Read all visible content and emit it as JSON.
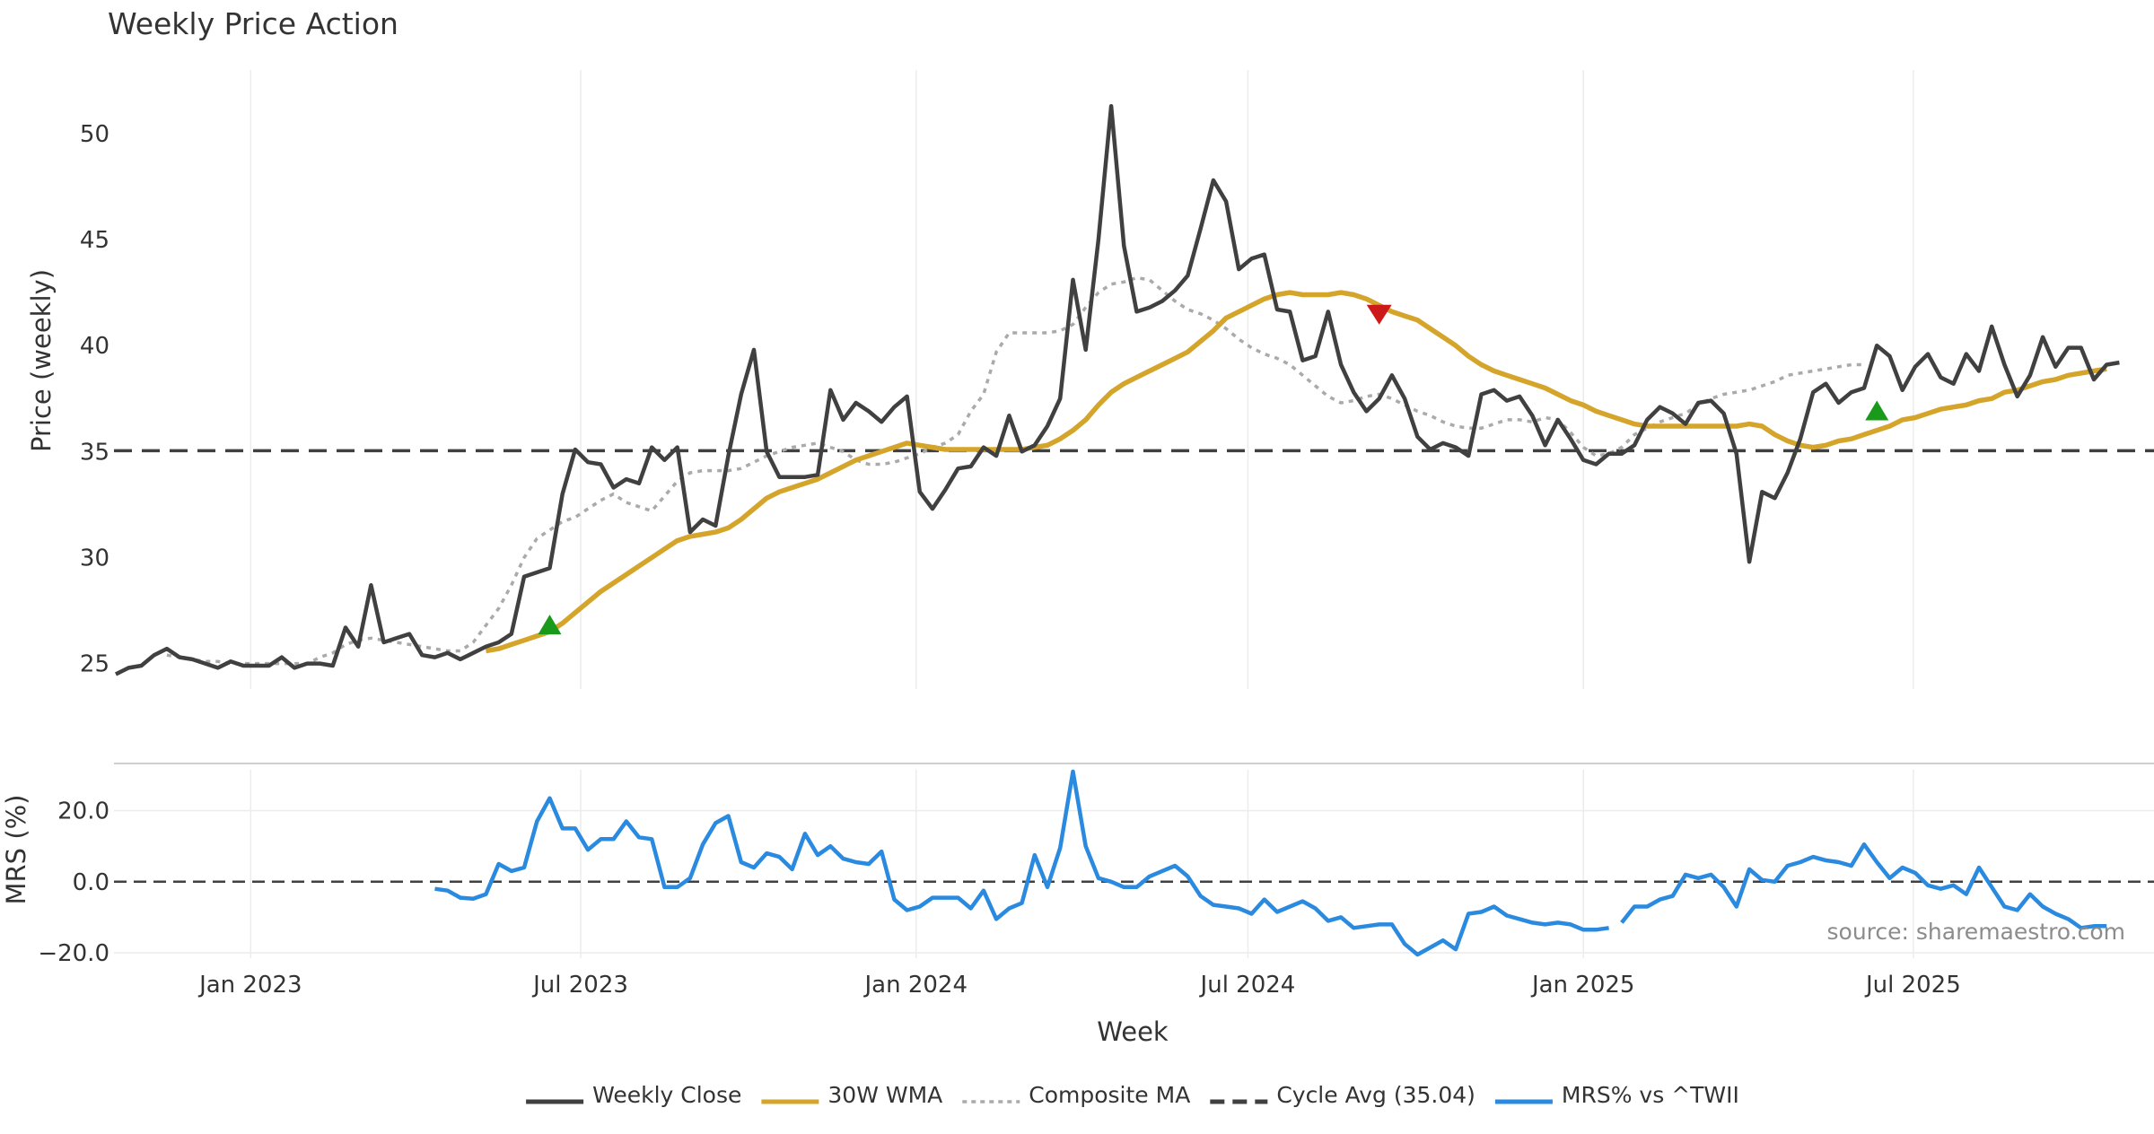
{
  "chart_data": [
    {
      "type": "line",
      "title": "Weekly Price Action",
      "ylabel": "Price (weekly)",
      "xlabel": "",
      "ylim": [
        23.8,
        53.0
      ],
      "yticks": [
        25,
        30,
        35,
        40,
        45,
        50
      ],
      "ytick_labels": [
        "25",
        "30",
        "35",
        "40",
        "45",
        "50"
      ],
      "xlim": [
        "2022-10-18",
        "2025-11-10"
      ],
      "xgrid": [
        "2023-01-01",
        "2023-07-01",
        "2024-01-01",
        "2024-07-01",
        "2025-01-01",
        "2025-07-01"
      ],
      "cycle_avg": 35.04,
      "x_weeks": "weekly points, 2022-10-19 to 2025-11-10",
      "series": [
        {
          "name": "Weekly Close",
          "start": "2022-10-19",
          "values": [
            24.5,
            24.8,
            24.9,
            25.4,
            25.7,
            25.3,
            25.2,
            25.0,
            24.8,
            25.1,
            24.9,
            24.9,
            24.9,
            25.3,
            24.8,
            25.0,
            25.0,
            24.9,
            26.7,
            25.8,
            28.7,
            26.0,
            26.2,
            26.4,
            25.4,
            25.3,
            25.5,
            25.2,
            25.5,
            25.8,
            26.0,
            26.4,
            29.1,
            29.3,
            29.5,
            33.0,
            35.1,
            34.5,
            34.4,
            33.3,
            33.7,
            33.5,
            35.2,
            34.6,
            35.2,
            31.2,
            31.8,
            31.5,
            34.8,
            37.7,
            39.8,
            35.0,
            33.8,
            33.8,
            33.8,
            33.9,
            37.9,
            36.5,
            37.3,
            36.9,
            36.4,
            37.1,
            37.6,
            33.1,
            32.3,
            33.2,
            34.2,
            34.3,
            35.2,
            34.8,
            36.7,
            35.0,
            35.3,
            36.2,
            37.5,
            43.1,
            39.8,
            45.0,
            51.3,
            44.7,
            41.6,
            41.8,
            42.1,
            42.6,
            43.3,
            45.5,
            47.8,
            46.8,
            43.6,
            44.1,
            44.3,
            41.7,
            41.6,
            39.3,
            39.5,
            41.6,
            39.1,
            37.8,
            36.9,
            37.5,
            38.6,
            37.5,
            35.7,
            35.1,
            35.4,
            35.2,
            34.8,
            37.7,
            37.9,
            37.4,
            37.6,
            36.7,
            35.3,
            36.5,
            35.6,
            34.6,
            34.4,
            34.9,
            34.9,
            35.3,
            36.5,
            37.1,
            36.8,
            36.3,
            37.3,
            37.4,
            36.8,
            34.9,
            29.8,
            33.1,
            32.8,
            34.0,
            35.6,
            37.8,
            38.2,
            37.3,
            37.8,
            38.0,
            40.0,
            39.5,
            37.9,
            39.0,
            39.6,
            38.5,
            38.2,
            39.6,
            38.8,
            40.9,
            39.1,
            37.6,
            38.6,
            40.4,
            39.0,
            39.9,
            39.9,
            38.4,
            39.1,
            39.2
          ]
        },
        {
          "name": "30W WMA",
          "start": "2023-05-10",
          "values": [
            25.6,
            25.7,
            25.9,
            26.1,
            26.3,
            26.5,
            26.9,
            27.4,
            27.9,
            28.4,
            28.8,
            29.2,
            29.6,
            30.0,
            30.4,
            30.8,
            31.0,
            31.1,
            31.2,
            31.4,
            31.8,
            32.3,
            32.8,
            33.1,
            33.3,
            33.5,
            33.7,
            34.0,
            34.3,
            34.6,
            34.8,
            35.0,
            35.2,
            35.4,
            35.3,
            35.2,
            35.1,
            35.1,
            35.1,
            35.1,
            35.1,
            35.1,
            35.1,
            35.2,
            35.3,
            35.6,
            36.0,
            36.5,
            37.2,
            37.8,
            38.2,
            38.5,
            38.8,
            39.1,
            39.4,
            39.7,
            40.2,
            40.7,
            41.3,
            41.6,
            41.9,
            42.2,
            42.4,
            42.5,
            42.4,
            42.4,
            42.4,
            42.5,
            42.4,
            42.2,
            41.9,
            41.6,
            41.4,
            41.2,
            40.8,
            40.4,
            40.0,
            39.5,
            39.1,
            38.8,
            38.6,
            38.4,
            38.2,
            38.0,
            37.7,
            37.4,
            37.2,
            36.9,
            36.7,
            36.5,
            36.3,
            36.2,
            36.2,
            36.2,
            36.2,
            36.2,
            36.2,
            36.2,
            36.2,
            36.3,
            36.2,
            35.8,
            35.5,
            35.3,
            35.2,
            35.3,
            35.5,
            35.6,
            35.8,
            36.0,
            36.2,
            36.5,
            36.6,
            36.8,
            37.0,
            37.1,
            37.2,
            37.4,
            37.5,
            37.8,
            37.9,
            38.1,
            38.3,
            38.4,
            38.6,
            38.7,
            38.8,
            38.9
          ]
        },
        {
          "name": "Composite MA",
          "start": "2022-11-16",
          "values": [
            25.4,
            25.3,
            25.2,
            25.1,
            25.1,
            25.0,
            25.0,
            25.0,
            25.0,
            25.0,
            25.0,
            25.0,
            25.3,
            25.5,
            25.9,
            26.1,
            26.2,
            26.1,
            26.0,
            25.9,
            25.8,
            25.7,
            25.6,
            25.6,
            26.0,
            26.8,
            27.6,
            28.7,
            30.0,
            30.9,
            31.3,
            31.7,
            31.9,
            32.3,
            32.7,
            33.0,
            32.6,
            32.4,
            32.2,
            32.9,
            33.6,
            34.0,
            34.1,
            34.1,
            34.1,
            34.2,
            34.5,
            34.8,
            35.0,
            35.2,
            35.3,
            35.4,
            35.2,
            35.0,
            34.6,
            34.4,
            34.4,
            34.5,
            34.7,
            34.9,
            35.2,
            35.4,
            35.8,
            36.9,
            37.7,
            39.7,
            40.6,
            40.6,
            40.6,
            40.6,
            40.7,
            41.0,
            41.8,
            42.5,
            42.9,
            43.0,
            43.2,
            43.1,
            42.6,
            42.1,
            41.7,
            41.5,
            41.2,
            40.8,
            40.3,
            39.9,
            39.6,
            39.4,
            39.1,
            38.6,
            38.1,
            37.6,
            37.3,
            37.4,
            37.6,
            37.7,
            37.5,
            37.2,
            36.9,
            36.7,
            36.4,
            36.2,
            36.1,
            36.1,
            36.3,
            36.5,
            36.5,
            36.4,
            36.6,
            36.5,
            35.9,
            35.2,
            34.8,
            34.9,
            35.2,
            35.8,
            36.1,
            36.4,
            36.6,
            36.8,
            37.2,
            37.5,
            37.7,
            37.8,
            37.9,
            38.1,
            38.3,
            38.6,
            38.7,
            38.8,
            38.9,
            39.0,
            39.1,
            39.1
          ]
        }
      ],
      "markers": [
        {
          "name": "Buy signal",
          "kind": "triangle-up",
          "date": "2023-06-14",
          "value": 26.8
        },
        {
          "name": "Sell signal",
          "kind": "triangle-down",
          "date": "2024-09-11",
          "value": 41.5
        },
        {
          "name": "Buy signal",
          "kind": "triangle-up",
          "date": "2025-06-11",
          "value": 36.9
        }
      ]
    },
    {
      "type": "line",
      "title": "",
      "ylabel": "MRS (%)",
      "xlabel": "Week",
      "ylim": [
        -21.5,
        31.5
      ],
      "yticks": [
        -20,
        0,
        20
      ],
      "ytick_labels": [
        "−20.0",
        "0.0",
        "20.0"
      ],
      "zero_line": 0,
      "series": [
        {
          "name": "MRS% vs ^TWII",
          "segments": [
            {
              "start": "2023-04-12",
              "values": [
                -2,
                -2.5,
                -4.5,
                -4.8,
                -3.5,
                5,
                3,
                4,
                17,
                23.5,
                15,
                15,
                9,
                12,
                12,
                17,
                12.5,
                12,
                -1.5,
                -1.5,
                1,
                10.5,
                16.5,
                18.5,
                5.5,
                4,
                8,
                7,
                3.5,
                13.5,
                7.5,
                10,
                6.5,
                5.5,
                5,
                8.5,
                -5,
                -8,
                -7,
                -4.5,
                -4.5,
                -4.5,
                -7.5,
                -2.5,
                -10.5,
                -7.5,
                -6,
                7.5,
                -1.5,
                9.5,
                31,
                10,
                1,
                0,
                -1.5,
                -1.5,
                1.5,
                3,
                4.5,
                1.5,
                -4,
                -6.5,
                -7,
                -7.5,
                -9,
                -5,
                -8.5,
                -7,
                -5.5,
                -7.5,
                -11,
                -10,
                -13,
                -12.5,
                -12,
                -12,
                -17.5,
                -20.5,
                -18.5,
                -16.5,
                -19,
                -9,
                -8.5,
                -7,
                -9.5,
                -10.5,
                -11.5,
                -12,
                -11.5,
                -12,
                -13.5,
                -13.5,
                -13
              ]
            },
            {
              "start": "2025-01-22",
              "values": [
                -11.5,
                -7,
                -7,
                -5,
                -4,
                2,
                1,
                2,
                -1.5,
                -7,
                3.5,
                0.5,
                0,
                4.5,
                5.5,
                7,
                6,
                5.5,
                4.5,
                10.5,
                5.5,
                1,
                4,
                2.5,
                -1,
                -2,
                -1,
                -3.5,
                4,
                -1.5,
                -7,
                -8,
                -3.5,
                -7,
                -9,
                -10.5,
                -13,
                -12.5,
                -12.5
              ]
            }
          ]
        }
      ],
      "xtick_labels": [
        "Jan 2023",
        "Jul 2023",
        "Jan 2024",
        "Jul 2024",
        "Jan 2025",
        "Jul 2025"
      ],
      "annotation": "source: sharemaestro.com"
    }
  ],
  "legend": {
    "placement": "bottom-center",
    "items": [
      {
        "label": "Weekly Close",
        "color": "#404040",
        "style": "solid"
      },
      {
        "label": "30W WMA",
        "color": "#d4a52a",
        "style": "solid"
      },
      {
        "label": "Composite MA",
        "color": "#aaaaaa",
        "style": "dotted"
      },
      {
        "label": "Cycle Avg (35.04)",
        "color": "#404040",
        "style": "dashed"
      },
      {
        "label": "MRS% vs ^TWII",
        "color": "#2a8ae0",
        "style": "solid"
      }
    ]
  },
  "colors": {
    "close": "#404040",
    "wma": "#d4a52a",
    "composite": "#aaaaaa",
    "cycle": "#404040",
    "mrs": "#2a8ae0",
    "buy": "#1a9a1a",
    "sell": "#cc1a1a",
    "grid": "#ececec",
    "text": "#333333",
    "source": "#8c8c8c"
  }
}
